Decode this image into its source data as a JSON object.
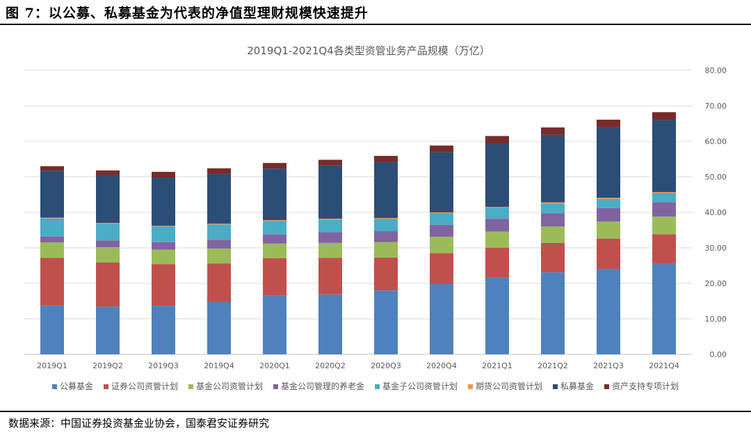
{
  "figure": {
    "title": "图 7：以公募、私募基金为代表的净值型理财规模快速提升",
    "source": "数据来源：中国证券投资基金业协会，国泰君安证券研究"
  },
  "chart_data": {
    "type": "bar",
    "stacked": true,
    "title": "2019Q1-2021Q4各类型资管业务产品规模（万亿）",
    "xlabel": "",
    "ylabel": "",
    "ylim": [
      0,
      80
    ],
    "yticks": [
      "0.00",
      "10.00",
      "20.00",
      "30.00",
      "40.00",
      "50.00",
      "60.00",
      "70.00",
      "80.00"
    ],
    "y_axis_position": "right",
    "grid": true,
    "legend_position": "bottom",
    "categories": [
      "2019Q1",
      "2019Q2",
      "2019Q3",
      "2019Q4",
      "2020Q1",
      "2020Q2",
      "2020Q3",
      "2020Q4",
      "2021Q1",
      "2021Q2",
      "2021Q3",
      "2021Q4"
    ],
    "series": [
      {
        "name": "公募基金",
        "color": "#4F81BD",
        "values": [
          13.8,
          13.4,
          13.7,
          14.8,
          16.6,
          16.9,
          18.0,
          19.9,
          21.6,
          23.1,
          24.0,
          25.6
        ]
      },
      {
        "name": "证券公司资管计划",
        "color": "#C0504D",
        "values": [
          13.4,
          12.5,
          11.7,
          10.8,
          10.5,
          10.3,
          9.3,
          8.6,
          8.4,
          8.3,
          8.6,
          8.2
        ]
      },
      {
        "name": "基金公司资管计划",
        "color": "#9BBB59",
        "values": [
          4.3,
          4.3,
          4.1,
          4.2,
          4.1,
          4.2,
          4.3,
          4.6,
          4.6,
          4.6,
          4.8,
          5.0
        ]
      },
      {
        "name": "基金公司管理的养老金",
        "color": "#8064A2",
        "values": [
          1.7,
          1.9,
          2.1,
          2.5,
          2.6,
          3.0,
          3.1,
          3.4,
          3.6,
          3.7,
          3.8,
          4.1
        ]
      },
      {
        "name": "基金子公司资管计划",
        "color": "#4BACC6",
        "values": [
          5.1,
          4.7,
          4.4,
          4.3,
          3.8,
          3.6,
          3.5,
          3.3,
          3.1,
          2.8,
          2.6,
          2.5
        ]
      },
      {
        "name": "期货公司资管计划",
        "color": "#F79646",
        "values": [
          0.2,
          0.2,
          0.2,
          0.2,
          0.2,
          0.2,
          0.2,
          0.2,
          0.2,
          0.3,
          0.3,
          0.3
        ]
      },
      {
        "name": "私募基金",
        "color": "#2C4D75",
        "values": [
          13.2,
          13.5,
          13.6,
          14.0,
          14.5,
          15.0,
          15.8,
          16.9,
          17.9,
          19.0,
          19.9,
          20.3
        ]
      },
      {
        "name": "资产支持专项计划",
        "color": "#772C2A",
        "values": [
          1.3,
          1.3,
          1.6,
          1.6,
          1.6,
          1.6,
          1.7,
          1.9,
          2.1,
          2.1,
          2.1,
          2.2
        ]
      }
    ]
  }
}
